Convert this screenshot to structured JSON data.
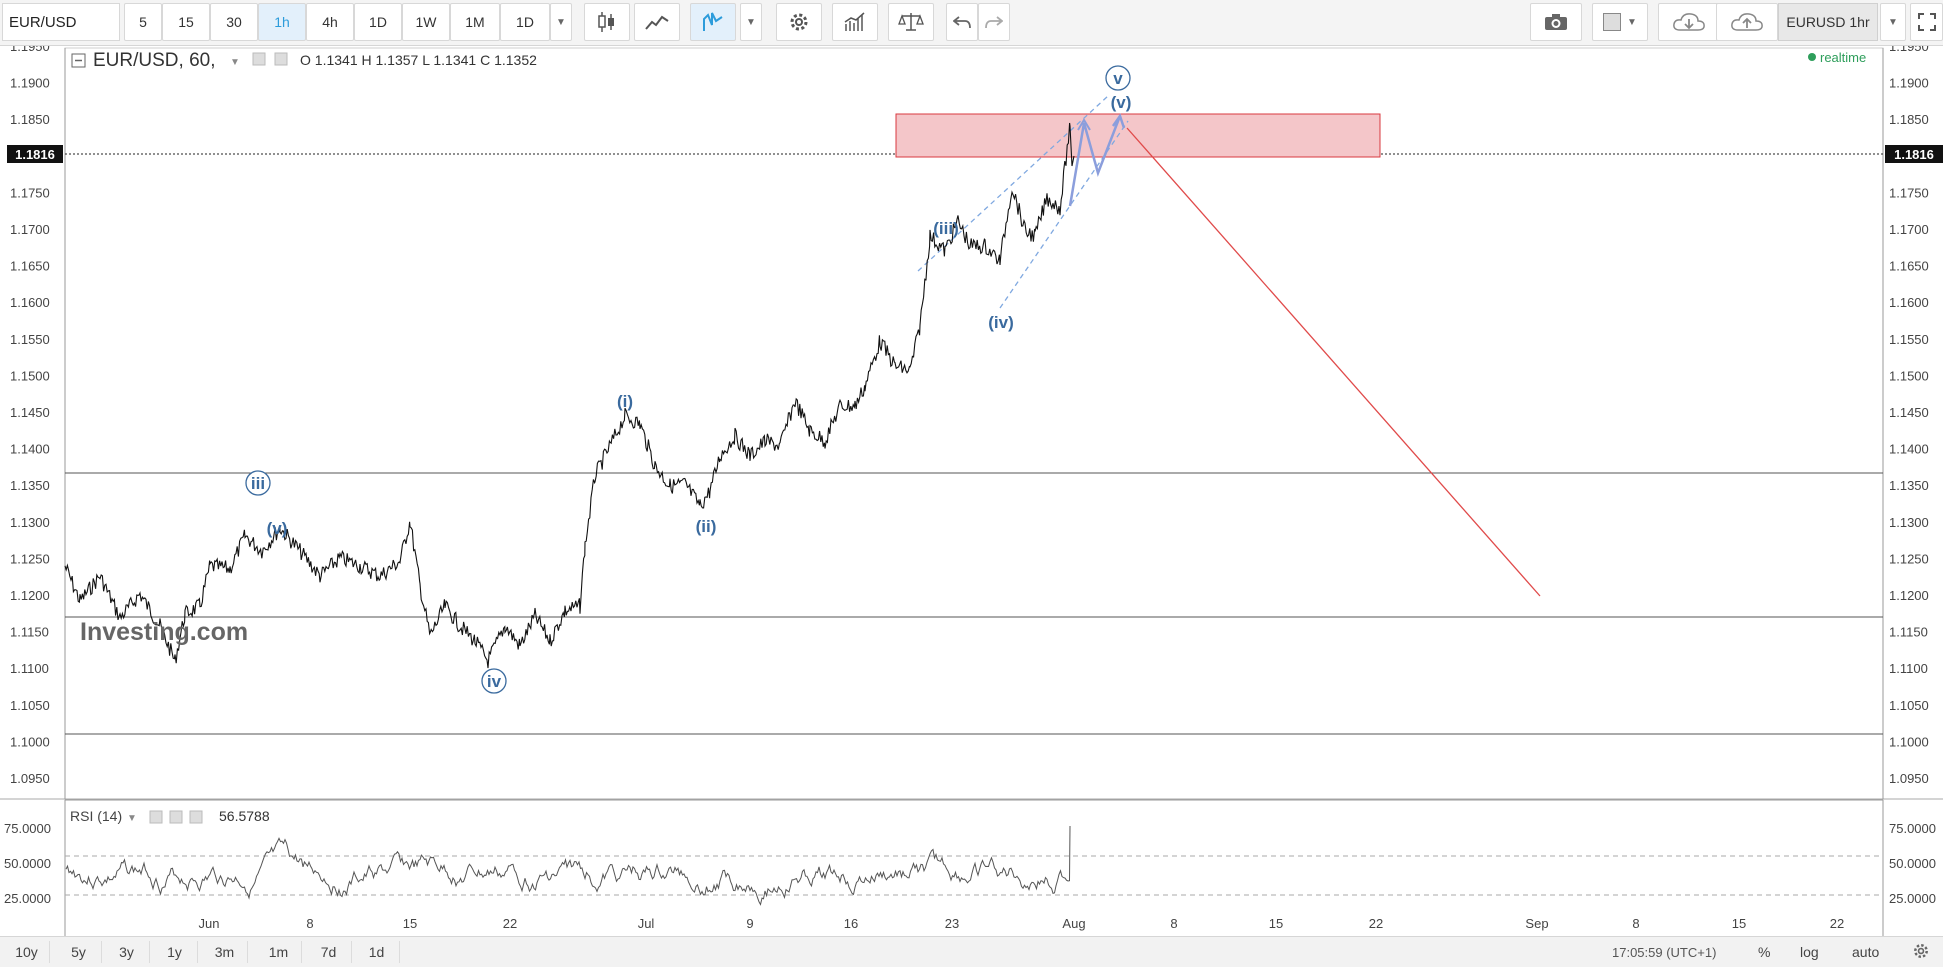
{
  "toolbar": {
    "symbol": "EURUSD",
    "symbol_display": "EUR/USD",
    "intervals": [
      "5",
      "15",
      "30",
      "1h",
      "4h",
      "1D",
      "1W",
      "1M",
      "1D"
    ],
    "active_interval": "1h",
    "symbol_badge": "EURUSD 1hr",
    "icons": [
      "candles-icon",
      "line-chart-icon",
      "indicator-icon",
      "gear-icon",
      "bars-icon",
      "scale-icon",
      "undo-icon",
      "redo-icon",
      "camera-icon",
      "color-icon",
      "cloud-download-icon",
      "cloud-upload-icon",
      "fullscreen-icon"
    ]
  },
  "legend": {
    "title": "EUR/USD, 60,",
    "ohlc": "O 1.1341  H 1.1357  L 1.1341  C 1.1352",
    "realtime": "realtime",
    "watermark": "Investing.com"
  },
  "price_axis": {
    "labels": [
      "1.1950",
      "1.1900",
      "1.1850",
      "1.1800",
      "1.1750",
      "1.1700",
      "1.1650",
      "1.1600",
      "1.1550",
      "1.1500",
      "1.1450",
      "1.1400",
      "1.1350",
      "1.1300",
      "1.1250",
      "1.1200",
      "1.1150",
      "1.1100",
      "1.1050",
      "1.1000",
      "1.0950"
    ],
    "current": "1.1816"
  },
  "rsi": {
    "label": "RSI (14)",
    "value": "56.5788",
    "labels": [
      "75.0000",
      "50.0000",
      "25.0000"
    ]
  },
  "time_axis": {
    "labels": [
      "Jun",
      "8",
      "15",
      "22",
      "Jul",
      "9",
      "16",
      "23",
      "Aug",
      "8",
      "15",
      "22",
      "Sep",
      "8",
      "15",
      "22"
    ]
  },
  "waves": {
    "iii_circle": "iii",
    "iv_circle": "iv",
    "v_circle": "v",
    "v_small": "(v)",
    "i": "(i)",
    "ii": "(ii)",
    "iii": "(iii)",
    "iv": "(iv)",
    "v_top": "(v)"
  },
  "bottombar": {
    "ranges": [
      "10y",
      "5y",
      "3y",
      "1y",
      "3m",
      "1m",
      "7d",
      "1d"
    ],
    "time": "17:05:59 (UTC+1)",
    "percent": "%",
    "log": "log",
    "auto": "auto"
  },
  "colors": {
    "accent": "#2d9cdb",
    "zone": "#f4c6c9",
    "zone_border": "#d9383f",
    "projection": "#e04a4a",
    "wave": "#3a6a9e",
    "channel": "#7fa8e0"
  }
}
